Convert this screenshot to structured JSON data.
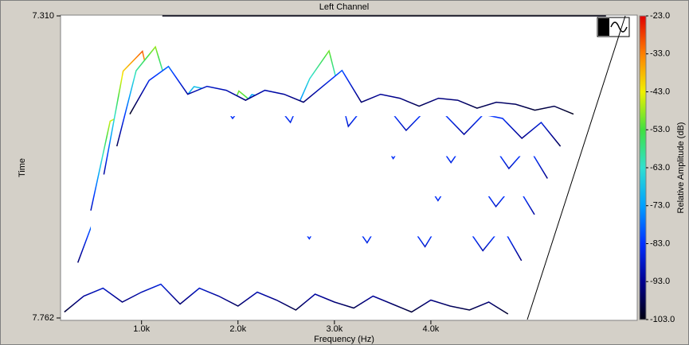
{
  "chart_data": {
    "type": "waterfall",
    "title": "Left Channel",
    "x_label": "Frequency (Hz)",
    "y_label": "Time",
    "colorbar_label": "Relative Amplitude (dB)",
    "xlim": [
      160,
      5000
    ],
    "xticks": [
      {
        "value": 1000,
        "label": "1.0k"
      },
      {
        "value": 2000,
        "label": "2.0k"
      },
      {
        "value": 3000,
        "label": "3.0k"
      },
      {
        "value": 4000,
        "label": "4.0k"
      }
    ],
    "ylim": [
      7.762,
      7.31
    ],
    "yticks": [
      {
        "value": 7.31,
        "label": "7.310"
      },
      {
        "value": 7.762,
        "label": "7.762"
      }
    ],
    "zlim": [
      -103,
      -23
    ],
    "zticks": [
      {
        "value": -23,
        "label": "-23.0"
      },
      {
        "value": -33,
        "label": "-33.0"
      },
      {
        "value": -43,
        "label": "-43.0"
      },
      {
        "value": -53,
        "label": "-53.0"
      },
      {
        "value": -63,
        "label": "-63.0"
      },
      {
        "value": -73,
        "label": "-73.0"
      },
      {
        "value": -83,
        "label": "-83.0"
      },
      {
        "value": -93,
        "label": "-93.0"
      },
      {
        "value": -103,
        "label": "-103.0"
      }
    ],
    "colormap": [
      "#000010",
      "#000090",
      "#0030ff",
      "#00a0ff",
      "#30e0d0",
      "#40e040",
      "#f0f000",
      "#ff8000",
      "#e00000"
    ],
    "x": [
      200,
      400,
      600,
      800,
      1000,
      1200,
      1400,
      1600,
      1800,
      2000,
      2200,
      2400,
      2600,
      2800,
      3000,
      3200,
      3400,
      3600,
      3800,
      4000,
      4200,
      4400,
      4600,
      4800
    ],
    "series": [
      {
        "time": 7.31,
        "values": [
          -103,
          -103,
          -103,
          -103,
          -103,
          -103,
          -103,
          -103,
          -103,
          -103,
          -103,
          -103,
          -103,
          -103,
          -103,
          -103,
          -103,
          -103,
          -103,
          -103,
          -103,
          -103,
          -103,
          -103
        ]
      },
      {
        "time": 7.46,
        "values": [
          -102,
          -85,
          -78,
          -92,
          -88,
          -90,
          -95,
          -90,
          -92,
          -96,
          -88,
          -80,
          -96,
          -92,
          -94,
          -98,
          -94,
          -95,
          -99,
          -96,
          -97,
          -100,
          -98,
          -102
        ]
      },
      {
        "time": 7.52,
        "values": [
          -98,
          -60,
          -48,
          -80,
          -68,
          -70,
          -84,
          -72,
          -74,
          -86,
          -64,
          -50,
          -88,
          -76,
          -78,
          -90,
          -80,
          -82,
          -92,
          -82,
          -84,
          -94,
          -86,
          -98
        ]
      },
      {
        "time": 7.58,
        "values": [
          -92,
          -40,
          -30,
          -72,
          -52,
          -55,
          -74,
          -50,
          -58,
          -78,
          -62,
          -55,
          -80,
          -66,
          -68,
          -84,
          -70,
          -72,
          -86,
          -72,
          -75,
          -89,
          -78,
          -94
        ]
      },
      {
        "time": 7.64,
        "values": [
          -90,
          -45,
          -40,
          -70,
          -50,
          -48,
          -72,
          -46,
          -52,
          -76,
          -60,
          -62,
          -80,
          -64,
          -66,
          -82,
          -68,
          -70,
          -85,
          -70,
          -74,
          -88,
          -76,
          -92
        ]
      },
      {
        "time": 7.7,
        "values": [
          -96,
          -70,
          -60,
          -75,
          -62,
          -58,
          -78,
          -64,
          -60,
          -80,
          -66,
          -70,
          -84,
          -68,
          -72,
          -86,
          -70,
          -74,
          -88,
          -72,
          -76,
          -90,
          -78,
          -95
        ]
      },
      {
        "time": 7.762,
        "values": [
          -100,
          -92,
          -88,
          -95,
          -90,
          -86,
          -96,
          -88,
          -92,
          -97,
          -90,
          -94,
          -99,
          -91,
          -95,
          -98,
          -92,
          -96,
          -100,
          -94,
          -97,
          -99,
          -95,
          -101
        ]
      }
    ]
  }
}
